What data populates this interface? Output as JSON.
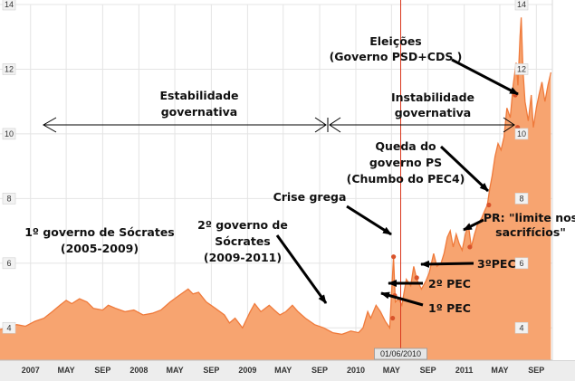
{
  "chart_data": {
    "type": "area",
    "title": "",
    "xlabel": "",
    "ylabel": "",
    "ylim": [
      3,
      14
    ],
    "xlim": [
      "2006-09-20",
      "2011-10-25"
    ],
    "yticks": [
      4,
      6,
      8,
      10,
      12,
      14
    ],
    "xticks": [
      {
        "date": "2007-01-01",
        "label": "2007"
      },
      {
        "date": "2007-05-01",
        "label": "MAY"
      },
      {
        "date": "2007-09-01",
        "label": "SEP"
      },
      {
        "date": "2008-01-01",
        "label": "2008"
      },
      {
        "date": "2008-05-01",
        "label": "MAY"
      },
      {
        "date": "2008-09-01",
        "label": "SEP"
      },
      {
        "date": "2009-01-01",
        "label": "2009"
      },
      {
        "date": "2009-05-01",
        "label": "MAY"
      },
      {
        "date": "2009-09-01",
        "label": "SEP"
      },
      {
        "date": "2010-01-01",
        "label": "2010"
      },
      {
        "date": "2010-05-01",
        "label": "MAY"
      },
      {
        "date": "2010-09-01",
        "label": "SEP"
      },
      {
        "date": "2011-01-01",
        "label": "2011"
      },
      {
        "date": "2011-05-01",
        "label": "MAY"
      },
      {
        "date": "2011-09-01",
        "label": "SEP"
      }
    ],
    "grid": true,
    "colors": {
      "fill": "#f7a470",
      "line": "#ef7a3b",
      "marker": "#d9532b",
      "grid": "#e4e4e4",
      "badge": "#f2f2f2"
    },
    "cursor_label": "01/06/2010",
    "cursor_date": "2010-06-01",
    "points": [
      [
        "2006-09-20",
        3.95
      ],
      [
        "2006-10-15",
        4.0
      ],
      [
        "2006-11-15",
        4.1
      ],
      [
        "2006-12-15",
        4.05
      ],
      [
        "2007-01-15",
        4.2
      ],
      [
        "2007-02-15",
        4.3
      ],
      [
        "2007-03-15",
        4.5
      ],
      [
        "2007-04-10",
        4.7
      ],
      [
        "2007-05-01",
        4.85
      ],
      [
        "2007-05-20",
        4.75
      ],
      [
        "2007-06-15",
        4.9
      ],
      [
        "2007-07-10",
        4.8
      ],
      [
        "2007-08-01",
        4.6
      ],
      [
        "2007-09-01",
        4.55
      ],
      [
        "2007-09-20",
        4.7
      ],
      [
        "2007-10-15",
        4.6
      ],
      [
        "2007-11-15",
        4.5
      ],
      [
        "2007-12-15",
        4.55
      ],
      [
        "2008-01-15",
        4.4
      ],
      [
        "2008-02-15",
        4.45
      ],
      [
        "2008-03-15",
        4.55
      ],
      [
        "2008-04-15",
        4.8
      ],
      [
        "2008-05-15",
        5.0
      ],
      [
        "2008-06-15",
        5.2
      ],
      [
        "2008-07-01",
        5.05
      ],
      [
        "2008-07-20",
        5.1
      ],
      [
        "2008-08-15",
        4.8
      ],
      [
        "2008-09-15",
        4.6
      ],
      [
        "2008-10-15",
        4.4
      ],
      [
        "2008-11-01",
        4.15
      ],
      [
        "2008-11-20",
        4.3
      ],
      [
        "2008-12-15",
        4.0
      ],
      [
        "2009-01-10",
        4.5
      ],
      [
        "2009-01-25",
        4.75
      ],
      [
        "2009-02-15",
        4.5
      ],
      [
        "2009-03-15",
        4.7
      ],
      [
        "2009-04-01",
        4.55
      ],
      [
        "2009-04-20",
        4.4
      ],
      [
        "2009-05-10",
        4.5
      ],
      [
        "2009-06-01",
        4.7
      ],
      [
        "2009-06-20",
        4.5
      ],
      [
        "2009-07-15",
        4.3
      ],
      [
        "2009-08-15",
        4.1
      ],
      [
        "2009-09-15",
        4.0
      ],
      [
        "2009-10-15",
        3.85
      ],
      [
        "2009-11-15",
        3.8
      ],
      [
        "2009-12-15",
        3.9
      ],
      [
        "2010-01-10",
        3.85
      ],
      [
        "2010-01-25",
        4.0
      ],
      [
        "2010-02-10",
        4.5
      ],
      [
        "2010-02-20",
        4.3
      ],
      [
        "2010-03-10",
        4.7
      ],
      [
        "2010-03-25",
        4.5
      ],
      [
        "2010-04-10",
        4.2
      ],
      [
        "2010-04-25",
        4.0
      ],
      [
        "2010-05-01",
        5.0
      ],
      [
        "2010-05-08",
        6.2
      ],
      [
        "2010-05-14",
        4.8
      ],
      [
        "2010-05-25",
        4.9
      ],
      [
        "2010-06-05",
        4.7
      ],
      [
        "2010-06-20",
        5.5
      ],
      [
        "2010-07-05",
        5.3
      ],
      [
        "2010-07-15",
        5.9
      ],
      [
        "2010-07-25",
        5.5
      ],
      [
        "2010-08-10",
        5.2
      ],
      [
        "2010-08-25",
        5.45
      ],
      [
        "2010-09-05",
        5.7
      ],
      [
        "2010-09-20",
        6.3
      ],
      [
        "2010-10-01",
        5.9
      ],
      [
        "2010-10-15",
        6.0
      ],
      [
        "2010-10-25",
        6.3
      ],
      [
        "2010-11-05",
        6.8
      ],
      [
        "2010-11-15",
        7.0
      ],
      [
        "2010-11-25",
        6.5
      ],
      [
        "2010-12-05",
        6.9
      ],
      [
        "2010-12-15",
        6.6
      ],
      [
        "2010-12-25",
        6.4
      ],
      [
        "2011-01-05",
        6.9
      ],
      [
        "2011-01-15",
        7.2
      ],
      [
        "2011-01-25",
        6.5
      ],
      [
        "2011-02-05",
        6.9
      ],
      [
        "2011-02-15",
        7.2
      ],
      [
        "2011-03-01",
        7.4
      ],
      [
        "2011-03-10",
        7.6
      ],
      [
        "2011-03-20",
        7.8
      ],
      [
        "2011-03-28",
        8.3
      ],
      [
        "2011-04-05",
        8.7
      ],
      [
        "2011-04-15",
        9.3
      ],
      [
        "2011-04-25",
        9.7
      ],
      [
        "2011-05-05",
        9.5
      ],
      [
        "2011-05-15",
        9.9
      ],
      [
        "2011-05-25",
        10.8
      ],
      [
        "2011-06-05",
        10.5
      ],
      [
        "2011-06-15",
        11.5
      ],
      [
        "2011-06-25",
        12.2
      ],
      [
        "2011-07-01",
        11.5
      ],
      [
        "2011-07-08",
        13.0
      ],
      [
        "2011-07-12",
        13.6
      ],
      [
        "2011-07-18",
        12.0
      ],
      [
        "2011-07-25",
        11.0
      ],
      [
        "2011-08-05",
        10.4
      ],
      [
        "2011-08-15",
        11.2
      ],
      [
        "2011-08-22",
        10.2
      ],
      [
        "2011-09-01",
        10.8
      ],
      [
        "2011-09-10",
        11.2
      ],
      [
        "2011-09-20",
        11.6
      ],
      [
        "2011-09-30",
        11.0
      ],
      [
        "2011-10-10",
        11.5
      ],
      [
        "2011-10-20",
        11.9
      ]
    ],
    "markers": [
      {
        "date": "2010-05-08",
        "value": 6.2
      },
      {
        "date": "2011-03-25",
        "value": 7.8
      },
      {
        "date": "2011-01-20",
        "value": 6.5
      },
      {
        "date": "2010-07-25",
        "value": 5.55
      },
      {
        "date": "2010-05-12",
        "value": 5.0
      },
      {
        "date": "2010-05-05",
        "value": 4.3
      },
      {
        "date": "2011-06-22",
        "value": 11.2
      },
      {
        "date": "2011-06-30",
        "value": 10.2
      }
    ]
  },
  "annotations": {
    "stability": [
      "Estabilidade",
      "governativa"
    ],
    "instability": [
      "Instabilidade",
      "governativa"
    ],
    "elections": [
      "Eleições",
      "(Governo PSD+CDS )"
    ],
    "first_gov": [
      "1º governo de Sócrates",
      "(2005-2009)"
    ],
    "second_gov": [
      "2º governo de",
      "Sócrates",
      "(2009-2011)"
    ],
    "greek_crisis": [
      "Crise grega"
    ],
    "ps_fall": [
      "Queda do",
      "governo  PS",
      "(Chumbo do PEC4)"
    ],
    "pr_limits": [
      "PR: \"limite  nos",
      "sacrifícios\""
    ],
    "pec3": [
      "3ºPEC"
    ],
    "pec2": [
      "2º PEC"
    ],
    "pec1": [
      "1º PEC"
    ]
  }
}
